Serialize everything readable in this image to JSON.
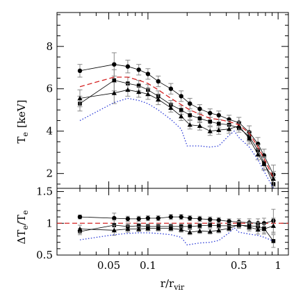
{
  "chart_data": [
    {
      "type": "line",
      "xscale": "log",
      "xlim": [
        0.02,
        1.2
      ],
      "ylim": [
        1.3,
        9.6
      ],
      "x_ticks": [
        0.05,
        0.1,
        0.5,
        1
      ],
      "x_tick_labels": [
        "0.05",
        "0.1",
        "0.5",
        "1"
      ],
      "y_ticks": [
        2,
        4,
        6,
        8
      ],
      "y_tick_labels": [
        "2",
        "4",
        "6",
        "8"
      ],
      "ylabel": "T",
      "ylabel_sub": "e",
      "ylabel_unit": "[keV]",
      "series": [
        {
          "marker": "circle",
          "line": "solid",
          "color": "#000000",
          "x": [
            0.03,
            0.055,
            0.07,
            0.085,
            0.1,
            0.12,
            0.15,
            0.18,
            0.21,
            0.25,
            0.3,
            0.35,
            0.42,
            0.5,
            0.6,
            0.7,
            0.78,
            0.92
          ],
          "y": [
            6.85,
            7.15,
            7.05,
            6.9,
            6.7,
            6.35,
            6.0,
            5.65,
            5.3,
            5.05,
            4.85,
            4.75,
            4.55,
            4.4,
            3.95,
            3.4,
            2.85,
            1.95
          ],
          "err": [
            0.3,
            0.55,
            0.3,
            0.25,
            0.25,
            0.25,
            0.25,
            0.25,
            0.25,
            0.2,
            0.2,
            0.2,
            0.2,
            0.25,
            0.3,
            0.3,
            0.3,
            0.45
          ]
        },
        {
          "marker": "square",
          "line": "solid",
          "color": "#000000",
          "x": [
            0.03,
            0.055,
            0.07,
            0.085,
            0.1,
            0.12,
            0.15,
            0.18,
            0.21,
            0.25,
            0.3,
            0.35,
            0.42,
            0.5,
            0.6,
            0.7,
            0.78,
            0.92
          ],
          "y": [
            5.3,
            6.4,
            6.25,
            6.15,
            5.95,
            5.65,
            5.25,
            5.0,
            4.75,
            4.6,
            4.45,
            4.35,
            4.3,
            4.15,
            3.75,
            3.1,
            2.5,
            1.5
          ],
          "err": [
            0.35,
            0.5,
            0.3,
            0.25,
            0.25,
            0.25,
            0.2,
            0.2,
            0.2,
            0.2,
            0.2,
            0.2,
            0.2,
            0.2,
            0.25,
            0.25,
            0.3,
            0.3
          ]
        },
        {
          "marker": "triangle",
          "line": "solid",
          "color": "#000000",
          "x": [
            0.03,
            0.055,
            0.07,
            0.085,
            0.1,
            0.12,
            0.15,
            0.18,
            0.21,
            0.25,
            0.3,
            0.35,
            0.42,
            0.5,
            0.6,
            0.7,
            0.78,
            0.92
          ],
          "y": [
            5.55,
            5.8,
            5.95,
            5.85,
            5.75,
            5.5,
            5.1,
            4.7,
            4.3,
            4.25,
            4.0,
            4.05,
            4.1,
            4.25,
            3.65,
            2.9,
            2.45,
            1.75
          ],
          "err": [
            0.4,
            0.5,
            0.3,
            0.25,
            0.25,
            0.25,
            0.2,
            0.2,
            0.2,
            0.2,
            0.2,
            0.2,
            0.2,
            0.2,
            0.25,
            0.25,
            0.3,
            0.35
          ]
        },
        {
          "marker": "none",
          "line": "dashed",
          "color": "#d42020",
          "x": [
            0.03,
            0.055,
            0.07,
            0.085,
            0.1,
            0.12,
            0.15,
            0.18,
            0.21,
            0.25,
            0.3,
            0.35,
            0.42,
            0.5,
            0.6,
            0.7,
            0.78,
            0.92
          ],
          "y": [
            6.1,
            6.55,
            6.55,
            6.4,
            6.25,
            5.95,
            5.55,
            5.25,
            5.0,
            4.8,
            4.6,
            4.55,
            4.45,
            4.3,
            3.9,
            3.25,
            2.7,
            1.8
          ]
        },
        {
          "marker": "none",
          "line": "dotted",
          "color": "#2a3ad8",
          "x": [
            0.03,
            0.055,
            0.07,
            0.085,
            0.1,
            0.12,
            0.15,
            0.18,
            0.2,
            0.25,
            0.3,
            0.35,
            0.42,
            0.46,
            0.5,
            0.6,
            0.7,
            0.78,
            0.92
          ],
          "y": [
            4.5,
            5.35,
            5.55,
            5.45,
            5.3,
            5.0,
            4.55,
            4.1,
            3.3,
            3.3,
            3.25,
            3.3,
            3.8,
            4.0,
            3.7,
            3.25,
            2.65,
            2.1,
            1.3
          ]
        }
      ]
    },
    {
      "type": "line",
      "xscale": "log",
      "xlim": [
        0.02,
        1.2
      ],
      "ylim": [
        0.5,
        1.55
      ],
      "x_ticks": [
        0.05,
        0.1,
        0.5,
        1
      ],
      "x_tick_labels": [
        "0.05",
        "0.1",
        "0.5",
        "1"
      ],
      "y_ticks": [
        0.5,
        1,
        1.5
      ],
      "y_tick_labels": [
        "0.5",
        "1",
        "1.5"
      ],
      "xlabel": "r/r",
      "xlabel_sub": "vir",
      "ylabel": "ΔT",
      "ylabel_sub": "e",
      "ylabel_den": "/T",
      "ylabel_den_sub": "e",
      "reference_line": {
        "y": 1,
        "line": "dashed",
        "color": "#d42020"
      },
      "series": [
        {
          "marker": "circle",
          "line": "solid",
          "color": "#000000",
          "x": [
            0.03,
            0.055,
            0.07,
            0.085,
            0.1,
            0.12,
            0.15,
            0.18,
            0.21,
            0.25,
            0.3,
            0.35,
            0.42,
            0.5,
            0.6,
            0.7,
            0.78,
            0.92
          ],
          "y": [
            1.1,
            1.08,
            1.07,
            1.07,
            1.08,
            1.08,
            1.1,
            1.1,
            1.08,
            1.07,
            1.06,
            1.05,
            1.03,
            1.02,
            1.01,
            1.0,
            1.0,
            1.04
          ],
          "err": [
            0.03,
            0.08,
            0.04,
            0.04,
            0.04,
            0.04,
            0.04,
            0.04,
            0.04,
            0.04,
            0.04,
            0.04,
            0.04,
            0.05,
            0.06,
            0.07,
            0.08,
            0.18
          ]
        },
        {
          "marker": "square",
          "line": "solid",
          "color": "#000000",
          "x": [
            0.03,
            0.055,
            0.07,
            0.085,
            0.1,
            0.12,
            0.15,
            0.18,
            0.21,
            0.25,
            0.3,
            0.35,
            0.42,
            0.5,
            0.6,
            0.7,
            0.78,
            0.92
          ],
          "y": [
            0.87,
            0.97,
            0.95,
            0.96,
            0.95,
            0.95,
            0.95,
            0.95,
            0.95,
            0.96,
            0.97,
            0.96,
            0.96,
            0.97,
            0.96,
            0.95,
            0.92,
            0.72
          ],
          "err": [
            0.05,
            0.08,
            0.05,
            0.04,
            0.04,
            0.04,
            0.04,
            0.04,
            0.04,
            0.04,
            0.04,
            0.04,
            0.04,
            0.05,
            0.06,
            0.06,
            0.07,
            0.1
          ]
        },
        {
          "marker": "triangle",
          "line": "solid",
          "color": "#000000",
          "x": [
            0.03,
            0.055,
            0.07,
            0.085,
            0.1,
            0.12,
            0.15,
            0.18,
            0.21,
            0.25,
            0.3,
            0.35,
            0.42,
            0.5,
            0.6,
            0.7,
            0.78,
            0.92
          ],
          "y": [
            0.91,
            0.89,
            0.91,
            0.91,
            0.92,
            0.92,
            0.92,
            0.9,
            0.86,
            0.88,
            0.87,
            0.89,
            0.92,
            0.98,
            0.94,
            0.9,
            0.91,
            0.96
          ],
          "err": [
            0.06,
            0.08,
            0.05,
            0.04,
            0.04,
            0.04,
            0.04,
            0.04,
            0.04,
            0.04,
            0.04,
            0.04,
            0.04,
            0.05,
            0.06,
            0.07,
            0.08,
            0.12
          ]
        },
        {
          "marker": "none",
          "line": "dotted",
          "color": "#2a3ad8",
          "x": [
            0.03,
            0.055,
            0.07,
            0.085,
            0.1,
            0.12,
            0.15,
            0.18,
            0.2,
            0.25,
            0.3,
            0.35,
            0.42,
            0.46,
            0.5,
            0.6,
            0.7,
            0.78,
            0.92
          ],
          "y": [
            0.74,
            0.82,
            0.84,
            0.85,
            0.85,
            0.84,
            0.82,
            0.78,
            0.66,
            0.69,
            0.7,
            0.73,
            0.85,
            0.93,
            0.86,
            0.83,
            0.81,
            0.78,
            0.72
          ]
        }
      ]
    }
  ]
}
